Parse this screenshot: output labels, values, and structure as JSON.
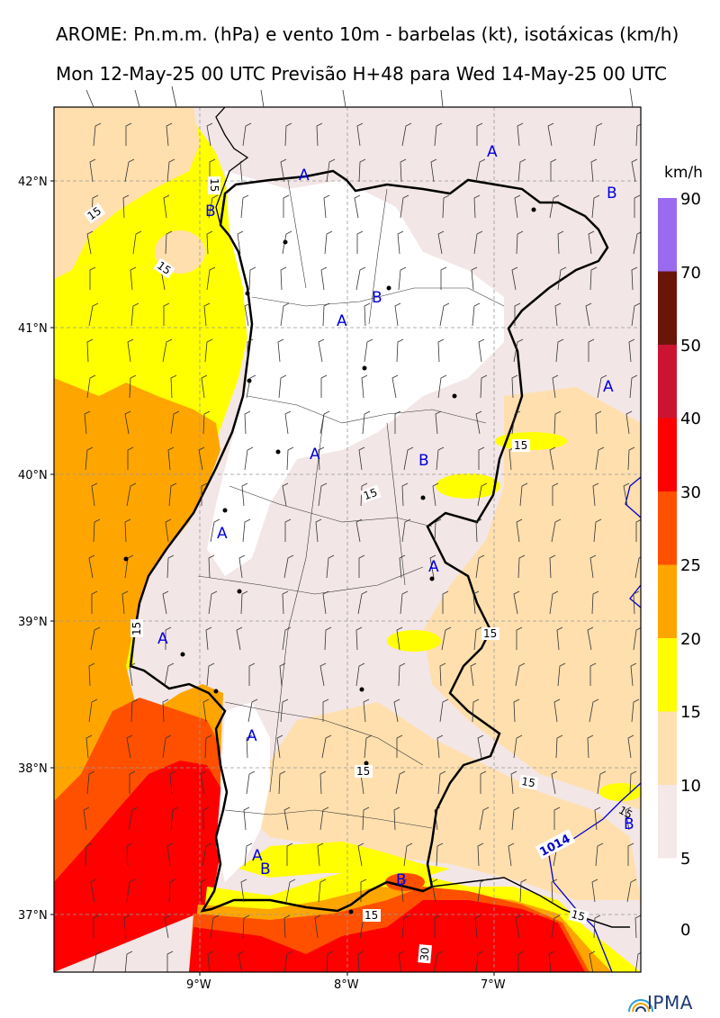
{
  "header": {
    "title_line1": "AROME: Pn.m.m. (hPa) e vento 10m - barbelas (kt), isotáxicas (km/h)",
    "title_line2": "Mon 12-May-25 00 UTC Previsão H+48 para Wed 14-May-25 00 UTC"
  },
  "axes": {
    "lat_ticks": [
      "42°N",
      "41°N",
      "40°N",
      "39°N",
      "38°N",
      "37°N"
    ],
    "lon_ticks": [
      "9°W",
      "8°W",
      "7°W"
    ]
  },
  "legend": {
    "unit": "km/h",
    "levels": [
      "90",
      "70",
      "50",
      "40",
      "30",
      "25",
      "20",
      "15",
      "10",
      "5",
      "0"
    ],
    "colors": [
      "#9a6af0",
      "#6b1508",
      "#cc1430",
      "#ff0000",
      "#ff5000",
      "#ffa500",
      "#ffff00",
      "#ffe0b0",
      "#f4e8e8"
    ]
  },
  "pressure_marks": [
    {
      "label": "A"
    },
    {
      "label": "A"
    },
    {
      "label": "B"
    },
    {
      "label": "B"
    },
    {
      "label": "B"
    },
    {
      "label": "A"
    },
    {
      "label": "A"
    },
    {
      "label": "A"
    },
    {
      "label": "B"
    },
    {
      "label": "A"
    },
    {
      "label": "A"
    },
    {
      "label": "A"
    },
    {
      "label": "A"
    },
    {
      "label": "A"
    },
    {
      "label": "B"
    },
    {
      "label": "B"
    },
    {
      "label": "B"
    }
  ],
  "isotach_labels": [
    "15",
    "15",
    "15",
    "15",
    "15",
    "15",
    "15",
    "15",
    "15",
    "15",
    "30"
  ],
  "isobar_label": "1014",
  "logo": {
    "text": "IPMA"
  }
}
